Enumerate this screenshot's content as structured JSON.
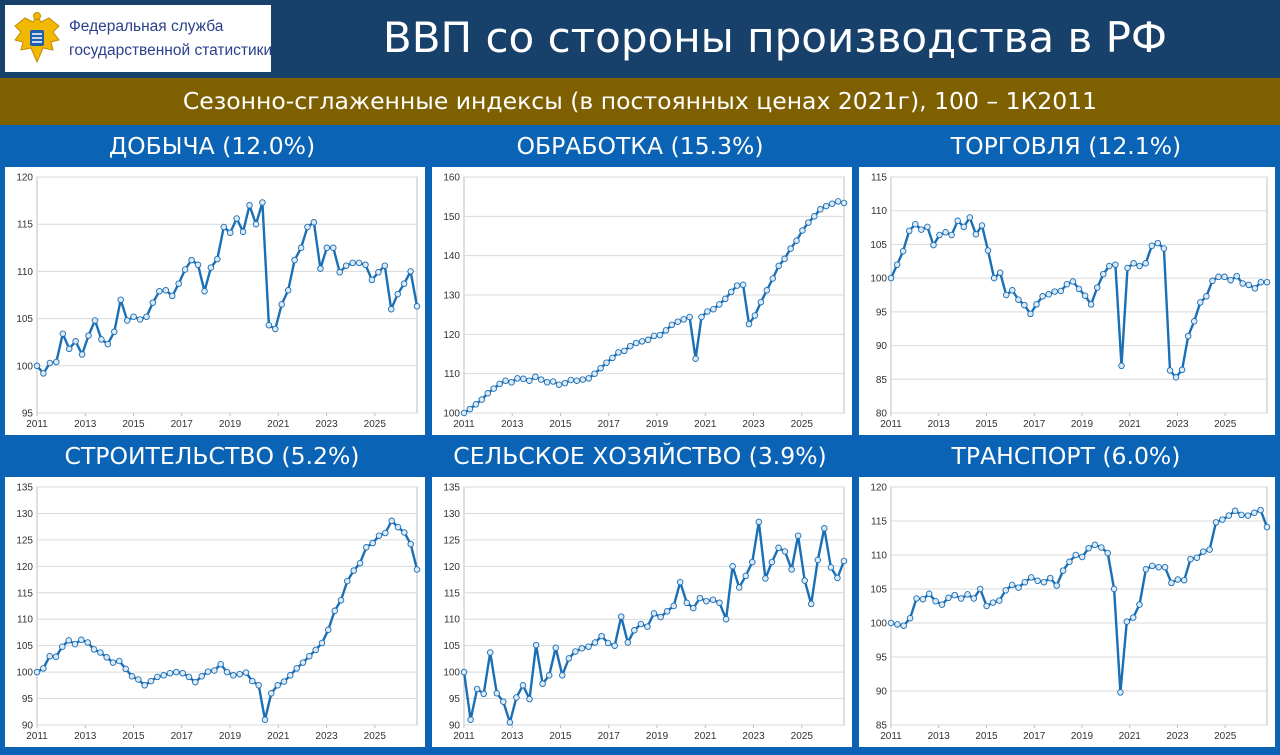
{
  "header": {
    "logo_line1": "Федеральная служба",
    "logo_line2": "государственной статистики",
    "title": "ВВП со стороны производства в РФ",
    "subtitle": "Сезонно-сглаженные индексы (в постоянных ценах 2021г), 100 – 1К2011"
  },
  "colors": {
    "header_bg": "#17406b",
    "subtitle_bg": "#7f6000",
    "panel_bg": "#0b63b5",
    "series_line": "#1a6fb5",
    "marker_fill": "#dde9f5"
  },
  "chart_data": [
    {
      "type": "line",
      "title": "ДОБЫЧА (12.0%)",
      "x_start": 2011,
      "x_end": 2026.75,
      "xticks": [
        "2011",
        "2013",
        "2015",
        "2017",
        "2019",
        "2021",
        "2023",
        "2025"
      ],
      "ylim": [
        95,
        120
      ],
      "yticks": [
        95,
        100,
        105,
        110,
        115,
        120
      ],
      "grid": true,
      "legend": "none",
      "values": [
        100,
        99.2,
        100.3,
        100.4,
        103.4,
        101.8,
        102.6,
        101.2,
        103.2,
        104.8,
        102.8,
        102.3,
        103.6,
        107.0,
        104.8,
        105.2,
        104.9,
        105.2,
        106.7,
        107.9,
        108.0,
        107.4,
        108.7,
        110.2,
        111.2,
        110.7,
        107.9,
        110.4,
        111.3,
        114.7,
        114.1,
        115.6,
        114.2,
        117.0,
        115.0,
        117.3,
        104.3,
        103.9,
        106.5,
        108.0,
        111.2,
        112.5,
        114.7,
        115.2,
        110.3,
        112.5,
        112.5,
        109.9,
        110.6,
        110.9,
        110.9,
        110.7,
        109.1,
        109.9,
        110.6,
        106.0,
        107.6,
        108.7,
        110.0,
        106.3
      ]
    },
    {
      "type": "line",
      "title": "ОБРАБОТКА (15.3%)",
      "x_start": 2011,
      "x_end": 2026.75,
      "xticks": [
        "2011",
        "2013",
        "2015",
        "2017",
        "2019",
        "2021",
        "2023",
        "2025"
      ],
      "ylim": [
        100,
        160
      ],
      "yticks": [
        100,
        110,
        120,
        130,
        140,
        150,
        160
      ],
      "grid": true,
      "legend": "none",
      "values": [
        100,
        101,
        102.2,
        103.4,
        105,
        106.2,
        107.4,
        108.2,
        107.8,
        108.8,
        108.7,
        108.2,
        109.2,
        108.5,
        107.8,
        108,
        107.2,
        107.6,
        108.4,
        108.2,
        108.5,
        108.8,
        110,
        111.4,
        112.8,
        114,
        115.4,
        115.8,
        117,
        117.8,
        118.2,
        118.6,
        119.6,
        119.8,
        121,
        122.4,
        123.2,
        123.8,
        124.4,
        113.8,
        124.4,
        125.8,
        126.4,
        127.6,
        129,
        130.8,
        132.4,
        132.6,
        122.6,
        124.8,
        128.2,
        131.2,
        134.2,
        137.4,
        139.2,
        141.8,
        143.8,
        146.4,
        148.4,
        150,
        151.8,
        152.6,
        153.2,
        153.8,
        153.4
      ]
    },
    {
      "type": "line",
      "title": "ТОРГОВЛЯ (12.1%)",
      "x_start": 2011,
      "x_end": 2026.75,
      "xticks": [
        "2011",
        "2013",
        "2015",
        "2017",
        "2019",
        "2021",
        "2023",
        "2025"
      ],
      "ylim": [
        80,
        115
      ],
      "yticks": [
        80,
        85,
        90,
        95,
        100,
        105,
        110,
        115
      ],
      "grid": true,
      "legend": "none",
      "values": [
        100,
        102,
        104,
        107,
        108,
        107.2,
        107.6,
        104.9,
        106.4,
        106.8,
        106.4,
        108.5,
        107.6,
        109,
        106.5,
        107.8,
        104.1,
        100,
        100.8,
        97.5,
        98.2,
        96.8,
        96,
        94.7,
        96.1,
        97.3,
        97.6,
        98,
        98.1,
        99.1,
        99.5,
        98.4,
        97.4,
        96.1,
        98.6,
        100.6,
        101.8,
        102,
        87,
        101.5,
        102.2,
        101.8,
        102.2,
        104.8,
        105.2,
        104.4,
        86.3,
        85.3,
        86.4,
        91.4,
        93.6,
        96.4,
        97.3,
        99.6,
        100.2,
        100.2,
        99.7,
        100.3,
        99.2,
        99,
        98.5,
        99.4,
        99.4
      ]
    },
    {
      "type": "line",
      "title": "СТРОИТЕЛЬСТВО (5.2%)",
      "x_start": 2011,
      "x_end": 2026.75,
      "xticks": [
        "2011",
        "2013",
        "2015",
        "2017",
        "2019",
        "2021",
        "2023",
        "2025"
      ],
      "ylim": [
        90,
        135
      ],
      "yticks": [
        90,
        95,
        100,
        105,
        110,
        115,
        120,
        125,
        130,
        135
      ],
      "grid": true,
      "legend": "none",
      "values": [
        100,
        100.7,
        103,
        102.9,
        104.8,
        106,
        105.3,
        106.1,
        105.6,
        104.3,
        103.7,
        102.8,
        101.8,
        102.1,
        100.6,
        99.2,
        98.6,
        97.5,
        98.3,
        99.1,
        99.4,
        99.8,
        100,
        99.8,
        99.1,
        98.1,
        99.2,
        100.1,
        100.3,
        101.5,
        100,
        99.4,
        99.6,
        99.9,
        98.3,
        97.5,
        91,
        96,
        97.5,
        98.2,
        99.4,
        100.7,
        101.8,
        103,
        104.2,
        105.5,
        108,
        111.6,
        113.6,
        117.2,
        119.2,
        120.6,
        123.6,
        124.4,
        125.8,
        126.3,
        128.6,
        127.4,
        126.4,
        124.2,
        119.4
      ]
    },
    {
      "type": "line",
      "title": "СЕЛЬСКОЕ ХОЗЯЙСТВО (3.9%)",
      "x_start": 2011,
      "x_end": 2026.75,
      "xticks": [
        "2011",
        "2013",
        "2015",
        "2017",
        "2019",
        "2021",
        "2023",
        "2025"
      ],
      "ylim": [
        90,
        135
      ],
      "yticks": [
        90,
        95,
        100,
        105,
        110,
        115,
        120,
        125,
        130,
        135
      ],
      "grid": true,
      "legend": "none",
      "values": [
        100,
        91,
        96.8,
        95.9,
        103.7,
        96,
        94.4,
        90.5,
        95.2,
        97.5,
        94.9,
        105.1,
        97.8,
        99.4,
        104.6,
        99.4,
        102.6,
        103.9,
        104.5,
        104.8,
        105.6,
        106.8,
        105.5,
        105,
        110.5,
        105.6,
        107.9,
        109.1,
        108.6,
        111.1,
        110.4,
        111.5,
        112.5,
        117,
        113.1,
        112.1,
        114,
        113.4,
        113.7,
        113.1,
        110,
        120,
        116,
        118.2,
        120.8,
        128.4,
        117.7,
        120.8,
        123.5,
        122.8,
        119.4,
        125.8,
        117.3,
        112.9,
        121.2,
        127.2,
        119.8,
        117.8,
        121
      ]
    },
    {
      "type": "line",
      "title": "ТРАНСПОРТ (6.0%)",
      "x_start": 2011,
      "x_end": 2026.75,
      "xticks": [
        "2011",
        "2013",
        "2015",
        "2017",
        "2019",
        "2021",
        "2023",
        "2025"
      ],
      "ylim": [
        85,
        120
      ],
      "yticks": [
        85,
        90,
        95,
        100,
        105,
        110,
        115,
        120
      ],
      "grid": true,
      "legend": "none",
      "values": [
        100,
        99.8,
        99.6,
        100.7,
        103.6,
        103.5,
        104.3,
        103.2,
        102.7,
        103.7,
        104.1,
        103.6,
        104.2,
        103.6,
        105,
        102.5,
        103,
        103.3,
        104.8,
        105.6,
        105.2,
        106,
        106.7,
        106.2,
        106,
        106.6,
        105.5,
        107.7,
        109,
        110,
        109.7,
        111,
        111.5,
        111.1,
        110.3,
        105,
        89.8,
        100.2,
        100.8,
        102.7,
        107.9,
        108.4,
        108.2,
        108.2,
        105.9,
        106.4,
        106.3,
        109.4,
        109.6,
        110.5,
        110.8,
        114.8,
        115.2,
        115.8,
        116.5,
        115.9,
        115.8,
        116.2,
        116.6,
        114.1
      ]
    }
  ]
}
